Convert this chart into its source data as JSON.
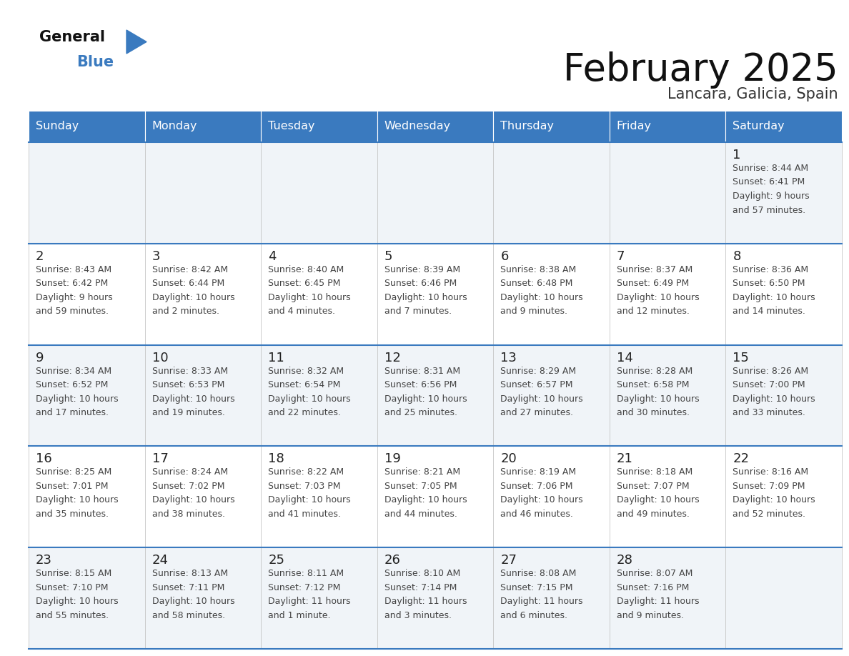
{
  "title": "February 2025",
  "subtitle": "Lancara, Galicia, Spain",
  "header_bg": "#3a7abf",
  "header_text_color": "#ffffff",
  "cell_bg_light": "#f0f4f8",
  "cell_bg_white": "#ffffff",
  "border_color": "#3a7abf",
  "day_headers": [
    "Sunday",
    "Monday",
    "Tuesday",
    "Wednesday",
    "Thursday",
    "Friday",
    "Saturday"
  ],
  "days": [
    {
      "day": 1,
      "col": 6,
      "row": 0,
      "sunrise": "8:44 AM",
      "sunset": "6:41 PM",
      "daylight_line1": "Daylight: 9 hours",
      "daylight_line2": "and 57 minutes."
    },
    {
      "day": 2,
      "col": 0,
      "row": 1,
      "sunrise": "8:43 AM",
      "sunset": "6:42 PM",
      "daylight_line1": "Daylight: 9 hours",
      "daylight_line2": "and 59 minutes."
    },
    {
      "day": 3,
      "col": 1,
      "row": 1,
      "sunrise": "8:42 AM",
      "sunset": "6:44 PM",
      "daylight_line1": "Daylight: 10 hours",
      "daylight_line2": "and 2 minutes."
    },
    {
      "day": 4,
      "col": 2,
      "row": 1,
      "sunrise": "8:40 AM",
      "sunset": "6:45 PM",
      "daylight_line1": "Daylight: 10 hours",
      "daylight_line2": "and 4 minutes."
    },
    {
      "day": 5,
      "col": 3,
      "row": 1,
      "sunrise": "8:39 AM",
      "sunset": "6:46 PM",
      "daylight_line1": "Daylight: 10 hours",
      "daylight_line2": "and 7 minutes."
    },
    {
      "day": 6,
      "col": 4,
      "row": 1,
      "sunrise": "8:38 AM",
      "sunset": "6:48 PM",
      "daylight_line1": "Daylight: 10 hours",
      "daylight_line2": "and 9 minutes."
    },
    {
      "day": 7,
      "col": 5,
      "row": 1,
      "sunrise": "8:37 AM",
      "sunset": "6:49 PM",
      "daylight_line1": "Daylight: 10 hours",
      "daylight_line2": "and 12 minutes."
    },
    {
      "day": 8,
      "col": 6,
      "row": 1,
      "sunrise": "8:36 AM",
      "sunset": "6:50 PM",
      "daylight_line1": "Daylight: 10 hours",
      "daylight_line2": "and 14 minutes."
    },
    {
      "day": 9,
      "col": 0,
      "row": 2,
      "sunrise": "8:34 AM",
      "sunset": "6:52 PM",
      "daylight_line1": "Daylight: 10 hours",
      "daylight_line2": "and 17 minutes."
    },
    {
      "day": 10,
      "col": 1,
      "row": 2,
      "sunrise": "8:33 AM",
      "sunset": "6:53 PM",
      "daylight_line1": "Daylight: 10 hours",
      "daylight_line2": "and 19 minutes."
    },
    {
      "day": 11,
      "col": 2,
      "row": 2,
      "sunrise": "8:32 AM",
      "sunset": "6:54 PM",
      "daylight_line1": "Daylight: 10 hours",
      "daylight_line2": "and 22 minutes."
    },
    {
      "day": 12,
      "col": 3,
      "row": 2,
      "sunrise": "8:31 AM",
      "sunset": "6:56 PM",
      "daylight_line1": "Daylight: 10 hours",
      "daylight_line2": "and 25 minutes."
    },
    {
      "day": 13,
      "col": 4,
      "row": 2,
      "sunrise": "8:29 AM",
      "sunset": "6:57 PM",
      "daylight_line1": "Daylight: 10 hours",
      "daylight_line2": "and 27 minutes."
    },
    {
      "day": 14,
      "col": 5,
      "row": 2,
      "sunrise": "8:28 AM",
      "sunset": "6:58 PM",
      "daylight_line1": "Daylight: 10 hours",
      "daylight_line2": "and 30 minutes."
    },
    {
      "day": 15,
      "col": 6,
      "row": 2,
      "sunrise": "8:26 AM",
      "sunset": "7:00 PM",
      "daylight_line1": "Daylight: 10 hours",
      "daylight_line2": "and 33 minutes."
    },
    {
      "day": 16,
      "col": 0,
      "row": 3,
      "sunrise": "8:25 AM",
      "sunset": "7:01 PM",
      "daylight_line1": "Daylight: 10 hours",
      "daylight_line2": "and 35 minutes."
    },
    {
      "day": 17,
      "col": 1,
      "row": 3,
      "sunrise": "8:24 AM",
      "sunset": "7:02 PM",
      "daylight_line1": "Daylight: 10 hours",
      "daylight_line2": "and 38 minutes."
    },
    {
      "day": 18,
      "col": 2,
      "row": 3,
      "sunrise": "8:22 AM",
      "sunset": "7:03 PM",
      "daylight_line1": "Daylight: 10 hours",
      "daylight_line2": "and 41 minutes."
    },
    {
      "day": 19,
      "col": 3,
      "row": 3,
      "sunrise": "8:21 AM",
      "sunset": "7:05 PM",
      "daylight_line1": "Daylight: 10 hours",
      "daylight_line2": "and 44 minutes."
    },
    {
      "day": 20,
      "col": 4,
      "row": 3,
      "sunrise": "8:19 AM",
      "sunset": "7:06 PM",
      "daylight_line1": "Daylight: 10 hours",
      "daylight_line2": "and 46 minutes."
    },
    {
      "day": 21,
      "col": 5,
      "row": 3,
      "sunrise": "8:18 AM",
      "sunset": "7:07 PM",
      "daylight_line1": "Daylight: 10 hours",
      "daylight_line2": "and 49 minutes."
    },
    {
      "day": 22,
      "col": 6,
      "row": 3,
      "sunrise": "8:16 AM",
      "sunset": "7:09 PM",
      "daylight_line1": "Daylight: 10 hours",
      "daylight_line2": "and 52 minutes."
    },
    {
      "day": 23,
      "col": 0,
      "row": 4,
      "sunrise": "8:15 AM",
      "sunset": "7:10 PM",
      "daylight_line1": "Daylight: 10 hours",
      "daylight_line2": "and 55 minutes."
    },
    {
      "day": 24,
      "col": 1,
      "row": 4,
      "sunrise": "8:13 AM",
      "sunset": "7:11 PM",
      "daylight_line1": "Daylight: 10 hours",
      "daylight_line2": "and 58 minutes."
    },
    {
      "day": 25,
      "col": 2,
      "row": 4,
      "sunrise": "8:11 AM",
      "sunset": "7:12 PM",
      "daylight_line1": "Daylight: 11 hours",
      "daylight_line2": "and 1 minute."
    },
    {
      "day": 26,
      "col": 3,
      "row": 4,
      "sunrise": "8:10 AM",
      "sunset": "7:14 PM",
      "daylight_line1": "Daylight: 11 hours",
      "daylight_line2": "and 3 minutes."
    },
    {
      "day": 27,
      "col": 4,
      "row": 4,
      "sunrise": "8:08 AM",
      "sunset": "7:15 PM",
      "daylight_line1": "Daylight: 11 hours",
      "daylight_line2": "and 6 minutes."
    },
    {
      "day": 28,
      "col": 5,
      "row": 4,
      "sunrise": "8:07 AM",
      "sunset": "7:16 PM",
      "daylight_line1": "Daylight: 11 hours",
      "daylight_line2": "and 9 minutes."
    }
  ],
  "num_rows": 5,
  "num_cols": 7,
  "figsize": [
    11.88,
    9.18
  ],
  "dpi": 100
}
